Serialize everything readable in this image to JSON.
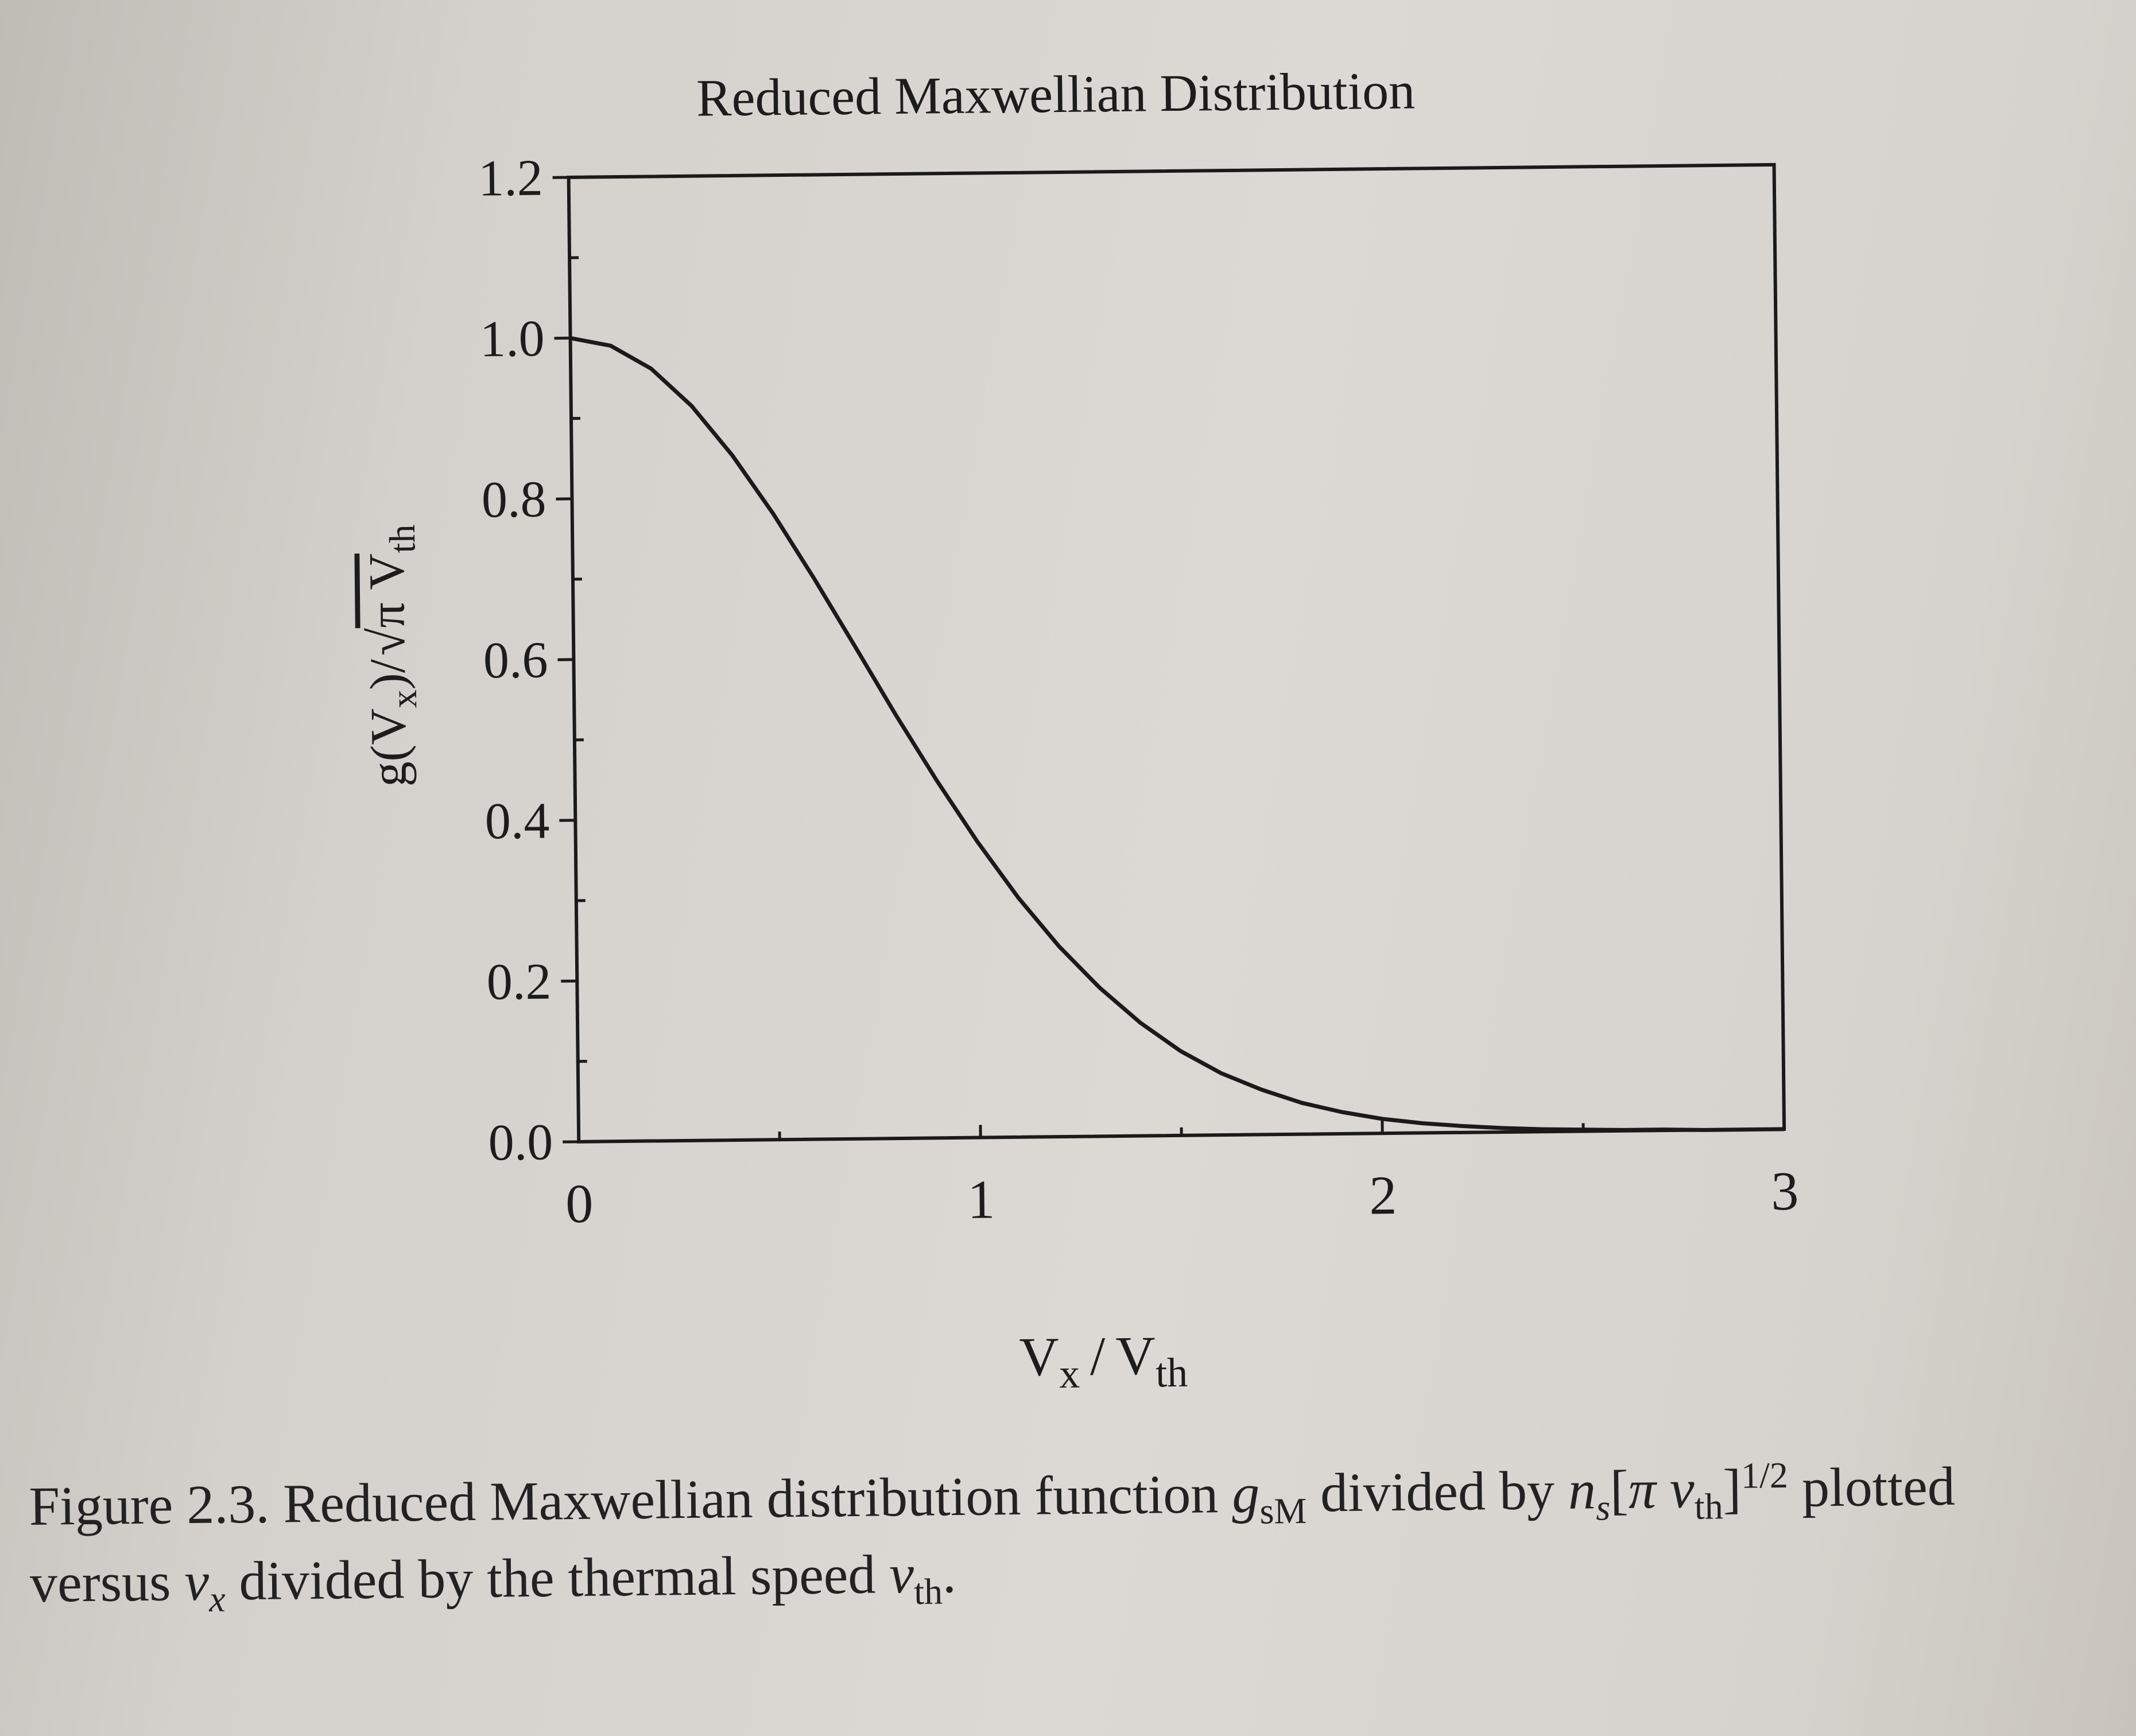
{
  "chart_data": {
    "type": "line",
    "title": "Reduced Maxwellian Distribution",
    "xlabel": {
      "v1": "V",
      "sub1": "x",
      "slash": "/",
      "v2": "V",
      "sub2": "th"
    },
    "ylabel": {
      "g": "g(V",
      "sub1": "x",
      "rest": ")/",
      "inner": "π V",
      "sub2": "th"
    },
    "xlim": [
      0,
      3
    ],
    "ylim": [
      0,
      1.2
    ],
    "xticks": [
      "0",
      "1",
      "2",
      "3"
    ],
    "yticks": [
      "0.0",
      "0.2",
      "0.4",
      "0.6",
      "0.8",
      "1.0",
      "1.2"
    ],
    "grid": false,
    "series": [
      {
        "x": [
          0,
          0.1,
          0.2,
          0.3,
          0.4,
          0.5,
          0.6,
          0.7,
          0.8,
          0.9,
          1.0,
          1.1,
          1.2,
          1.3,
          1.4,
          1.5,
          1.6,
          1.7,
          1.8,
          1.9,
          2.0,
          2.1,
          2.2,
          2.3,
          2.4,
          2.5,
          2.6,
          2.7,
          2.8,
          2.9,
          3.0
        ],
        "values": [
          1.0,
          0.99,
          0.961,
          0.914,
          0.852,
          0.779,
          0.698,
          0.613,
          0.527,
          0.445,
          0.368,
          0.298,
          0.237,
          0.185,
          0.141,
          0.105,
          0.077,
          0.056,
          0.039,
          0.027,
          0.018,
          0.012,
          0.008,
          0.005,
          0.003,
          0.002,
          0.001,
          0.001,
          0.0,
          0.0,
          0.0
        ]
      }
    ]
  },
  "caption": {
    "line1_a": "Figure 2.3. Reduced Maxwellian distribution function ",
    "g": "g",
    "g_sub": "sM",
    "line1_b": " divided by ",
    "n": "n",
    "n_sub": "s",
    "bracket_open": "[",
    "pi_v": "π v",
    "th_sub": "th",
    "bracket_close": "]",
    "power": "1/2",
    "line1_c": " plotted",
    "line2_a": "versus ",
    "vx": "v",
    "vx_sub": "x",
    "line2_b": " divided by the thermal speed ",
    "vth": "v",
    "vth_sub": "th",
    "line2_c": "."
  }
}
